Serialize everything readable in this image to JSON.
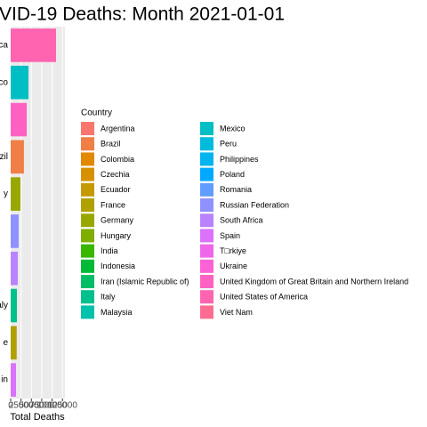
{
  "chart_data": {
    "type": "bar",
    "orientation": "horizontal",
    "title": "VID-19 Deaths: Month 2021-01-01",
    "x_label": "Total Deaths",
    "categories": [
      "rica",
      "exico",
      null,
      "razil",
      "y",
      null,
      null,
      "aly",
      "e",
      "in"
    ],
    "values": [
      109500,
      43000,
      38700,
      32000,
      23600,
      19300,
      17200,
      15000,
      14500,
      12900
    ],
    "colors": [
      "#FF64B0",
      "#00BFC4",
      "#FF61C3",
      "#EF7F46",
      "#99A800",
      "#8F91FF",
      "#B983FF",
      "#00C08B",
      "#B0A000",
      "#DB72FB"
    ],
    "xlim": [
      0,
      131000
    ],
    "xticks": [
      0,
      25000,
      50000,
      75000,
      100000,
      125000
    ],
    "grid": true,
    "legend": {
      "title": "Country",
      "items": [
        {
          "name": "Argentina",
          "color": "#F8766D"
        },
        {
          "name": "Brazil",
          "color": "#EF7F46"
        },
        {
          "name": "Colombia",
          "color": "#E38900"
        },
        {
          "name": "Czechia",
          "color": "#D69100"
        },
        {
          "name": "Ecuador",
          "color": "#C49A00"
        },
        {
          "name": "France",
          "color": "#B0A000"
        },
        {
          "name": "Germany",
          "color": "#99A800"
        },
        {
          "name": "Hungary",
          "color": "#7DAE00"
        },
        {
          "name": "India",
          "color": "#39B600"
        },
        {
          "name": "Indonesia",
          "color": "#00BA38"
        },
        {
          "name": "Iran (Islamic Republic of)",
          "color": "#00BE67"
        },
        {
          "name": "Italy",
          "color": "#00C08B"
        },
        {
          "name": "Malaysia",
          "color": "#00C1A9"
        },
        {
          "name": "Mexico",
          "color": "#00BFC4"
        },
        {
          "name": "Peru",
          "color": "#00BBDC"
        },
        {
          "name": "Philippines",
          "color": "#00B4EF"
        },
        {
          "name": "Poland",
          "color": "#00A9FF"
        },
        {
          "name": "Romania",
          "color": "#619CFF"
        },
        {
          "name": "Russian Federation",
          "color": "#8F91FF"
        },
        {
          "name": "South Africa",
          "color": "#B983FF"
        },
        {
          "name": "Spain",
          "color": "#DB72FB"
        },
        {
          "name": "T□rkiye",
          "color": "#F066EA"
        },
        {
          "name": "Ukraine",
          "color": "#FC61D5"
        },
        {
          "name": "United Kingdom of Great Britain and Northern Ireland",
          "color": "#FF61C3"
        },
        {
          "name": "United States of America",
          "color": "#FF64B0"
        },
        {
          "name": "Viet Nam",
          "color": "#FF6C91"
        }
      ]
    }
  }
}
